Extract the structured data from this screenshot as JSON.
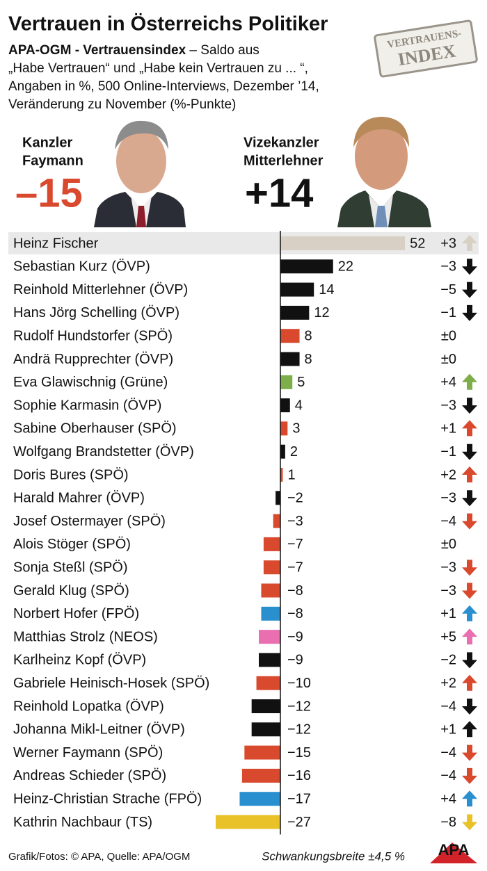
{
  "chart_data": {
    "type": "bar",
    "orientation": "horizontal",
    "title": "Vertrauen in Österreichs Politiker",
    "subtitle_bold": "APA-OGM - Vertrauensindex",
    "subtitle_lines": [
      " – Saldo aus",
      "„Habe Vertrauen“ und „Habe kein Vertrauen zu ... “,",
      "Angaben in %, 500 Online-Interviews, Dezember ’14,",
      "Veränderung zu November (%-Punkte)"
    ],
    "stamp": [
      "VERTRAUENS-",
      "INDEX"
    ],
    "leaders": [
      {
        "role": "Kanzler",
        "name": "Faymann",
        "value": -15,
        "value_label": "–15",
        "color": "#d9492e"
      },
      {
        "role": "Vizekanzler",
        "name": "Mitterlehner",
        "value": 14,
        "value_label": "+14",
        "color": "#111111"
      }
    ],
    "categories": [
      "Heinz Fischer",
      "Sebastian Kurz (ÖVP)",
      "Reinhold Mitterlehner (ÖVP)",
      "Hans Jörg Schelling (ÖVP)",
      "Rudolf Hundstorfer (SPÖ)",
      "Andrä Rupprechter (ÖVP)",
      "Eva Glawischnig (Grüne)",
      "Sophie Karmasin (ÖVP)",
      "Sabine Oberhauser (SPÖ)",
      "Wolfgang Brandstetter (ÖVP)",
      "Doris Bures (SPÖ)",
      "Harald Mahrer (ÖVP)",
      "Josef Ostermayer (SPÖ)",
      "Alois Stöger (SPÖ)",
      "Sonja Steßl (SPÖ)",
      "Gerald Klug (SPÖ)",
      "Norbert Hofer (FPÖ)",
      "Matthias Strolz (NEOS)",
      "Karlheinz Kopf (ÖVP)",
      "Gabriele Heinisch-Hosek (SPÖ)",
      "Reinhold Lopatka (ÖVP)",
      "Johanna Mikl-Leitner (ÖVP)",
      "Werner Faymann (SPÖ)",
      "Andreas Schieder (SPÖ)",
      "Heinz-Christian Strache (FPÖ)",
      "Kathrin Nachbaur (TS)"
    ],
    "values": [
      52,
      22,
      14,
      12,
      8,
      8,
      5,
      4,
      3,
      2,
      1,
      -2,
      -3,
      -7,
      -7,
      -8,
      -8,
      -9,
      -9,
      -10,
      -12,
      -12,
      -15,
      -16,
      -17,
      -27
    ],
    "value_labels": [
      "52",
      "22",
      "14",
      "12",
      "8",
      "8",
      "5",
      "4",
      "3",
      "2",
      "1",
      "−2",
      "−3",
      "−7",
      "−7",
      "−8",
      "−8",
      "−9",
      "−9",
      "−10",
      "−12",
      "−12",
      "−15",
      "−16",
      "−17",
      "−27"
    ],
    "colors": [
      "#d8d0c4",
      "#111111",
      "#111111",
      "#111111",
      "#d9492e",
      "#111111",
      "#7dae4a",
      "#111111",
      "#d9492e",
      "#111111",
      "#d9492e",
      "#111111",
      "#d9492e",
      "#d9492e",
      "#d9492e",
      "#d9492e",
      "#2a8fcf",
      "#e96fb0",
      "#111111",
      "#d9492e",
      "#111111",
      "#111111",
      "#d9492e",
      "#d9492e",
      "#2a8fcf",
      "#e8c228"
    ],
    "changes": [
      3,
      -3,
      -5,
      -1,
      0,
      0,
      4,
      -3,
      1,
      -1,
      2,
      -3,
      -4,
      0,
      -3,
      -3,
      1,
      5,
      -2,
      2,
      -4,
      1,
      -4,
      -4,
      4,
      -8
    ],
    "change_labels": [
      "+3",
      "−3",
      "−5",
      "−1",
      "±0",
      "±0",
      "+4",
      "−3",
      "+1",
      "−1",
      "+2",
      "−3",
      "−4",
      "±0",
      "−3",
      "−3",
      "+1",
      "+5",
      "−2",
      "+2",
      "−4",
      "+1",
      "−4",
      "−4",
      "+4",
      "−8"
    ],
    "source": "Grafik/Fotos: © APA, Quelle: APA/OGM",
    "note": "Schwankungsbreite ±4,5 %",
    "logo": "APA"
  }
}
